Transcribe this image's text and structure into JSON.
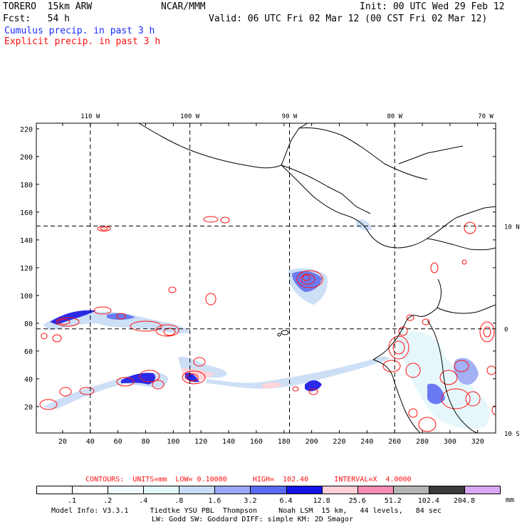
{
  "header": {
    "model": "TORERO  15km ARW",
    "org": "NCAR/MMM",
    "init": "Init: 00 UTC Wed 29 Feb 12",
    "fcst": "Fcst:   54 h",
    "valid": "Valid: 06 UTC Fri 02 Mar 12 (00 CST Fri 02 Mar 12)",
    "cumulus_label": "Cumulus precip. in past 3 h",
    "explicit_label": "Explicit precip. in past 3 h"
  },
  "colors": {
    "cumulus": "#1a2cff",
    "explicit": "#ff1010"
  },
  "chart_data": {
    "type": "heatmap",
    "x_ticks": [
      20,
      40,
      60,
      80,
      100,
      120,
      140,
      160,
      180,
      200,
      220,
      240,
      260,
      280,
      300,
      320
    ],
    "y_ticks": [
      20,
      40,
      60,
      80,
      100,
      120,
      140,
      160,
      180,
      200,
      220
    ],
    "xlim": [
      1,
      333
    ],
    "ylim": [
      1,
      224
    ],
    "lon_labels": [
      "110 W",
      "100 W",
      "90 W",
      "80 W",
      "70 W"
    ],
    "lon_grid_x": [
      40,
      112,
      184,
      260
    ],
    "lat_labels": [
      "10 N",
      "0",
      "10 S"
    ],
    "lat_grid_y": [
      150,
      76
    ],
    "contour_info": "CONTOURS:  UNITS=mm  LOW= 0.10000      HIGH=  102.40      INTERVAL=X  4.0000",
    "colorbar": {
      "levels": [
        ".1",
        ".2",
        ".4",
        ".8",
        "1.6",
        "3.2",
        "6.4",
        "12.8",
        "25.6",
        "51.2",
        "102.4",
        "204.8"
      ],
      "units": "mm",
      "colors": [
        "#ffffff",
        "#ffffff",
        "#f0fbff",
        "#e4f7fb",
        "#c8dcf5",
        "#9aa8f5",
        "#5a6cf2",
        "#1414e6",
        "#ffd0d8",
        "#f58cb4",
        "#b4b4b4",
        "#3a3a3a",
        "#d8a8f5"
      ]
    }
  },
  "footer": {
    "line1": "Model Info: V3.3.1     Tiedtke YSU PBL  Thompson     Noah LSM  15 km,   44 levels,   84 sec",
    "line2": "LW: Godd SW: Goddard DIFF: simple KM: 2D Smagor"
  }
}
